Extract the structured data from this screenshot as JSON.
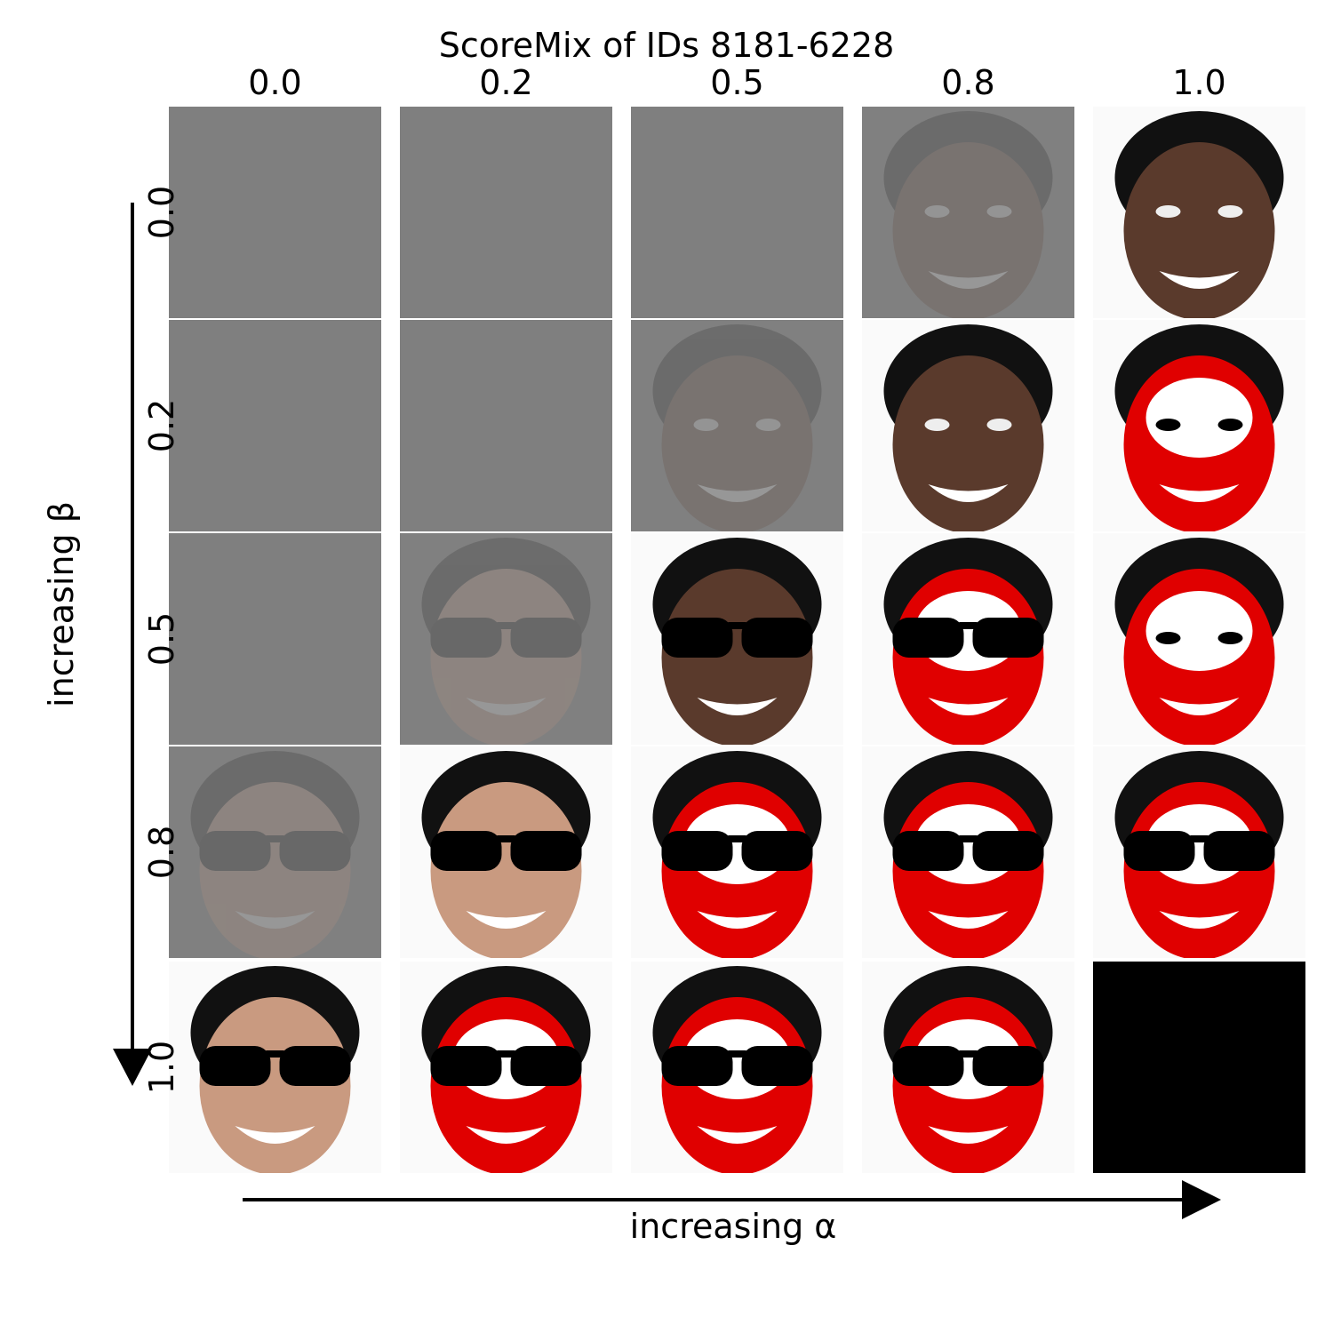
{
  "title": "ScoreMix of IDs 8181-6228",
  "columns": {
    "labels": [
      "0.0",
      "0.2",
      "0.5",
      "0.8",
      "1.0"
    ],
    "axis_label": "increasing α"
  },
  "rows": {
    "labels": [
      "0.0",
      "0.2",
      "0.5",
      "0.8",
      "1.0"
    ],
    "axis_label": "increasing β"
  }
}
